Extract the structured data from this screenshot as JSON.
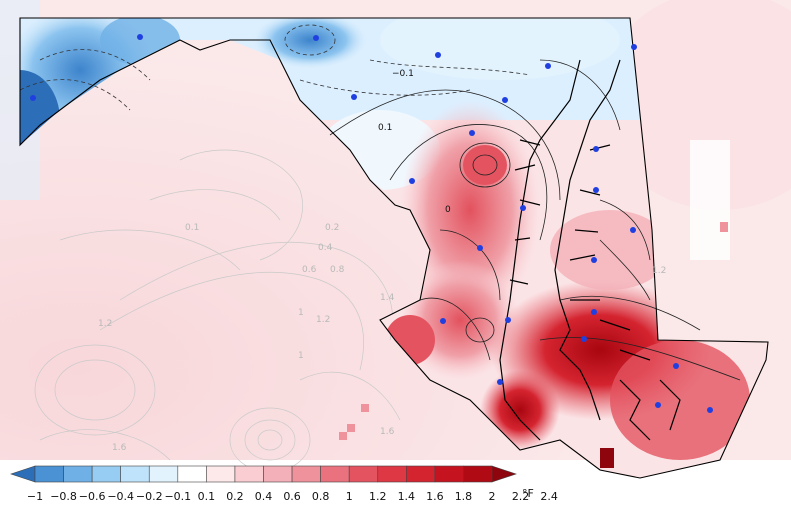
{
  "colorbar": {
    "ticks": [
      "−1",
      "−0.8",
      "−0.6",
      "−0.4",
      "−0.2",
      "−0.1",
      "0.1",
      "0.2",
      "0.4",
      "0.6",
      "0.8",
      "1",
      "1.2",
      "1.4",
      "1.6",
      "1.8",
      "2",
      "2.2",
      "2.4"
    ],
    "unit": "°F",
    "colors": [
      "#2c6fb8",
      "#4b92d4",
      "#6fb0e6",
      "#97cdf3",
      "#bfe3fa",
      "#e2f3fd",
      "#ffffff",
      "#fde8ea",
      "#f9cdd2",
      "#f4b0b8",
      "#ef929c",
      "#ea727e",
      "#e45460",
      "#dd3844",
      "#d42430",
      "#c5141f",
      "#b00a14",
      "#8f050d"
    ]
  },
  "contour_labels": {
    "inner": [
      "−0.1",
      "0.1",
      "0"
    ],
    "outer": [
      "0.1",
      "0.2",
      "0.4",
      "0.6",
      "0.8",
      "1",
      "1.2",
      "1.4",
      "1.2",
      "1.2",
      "1",
      "1.6",
      "1.6"
    ]
  },
  "stations": {
    "count": 24,
    "color": "#1f3fe0"
  }
}
